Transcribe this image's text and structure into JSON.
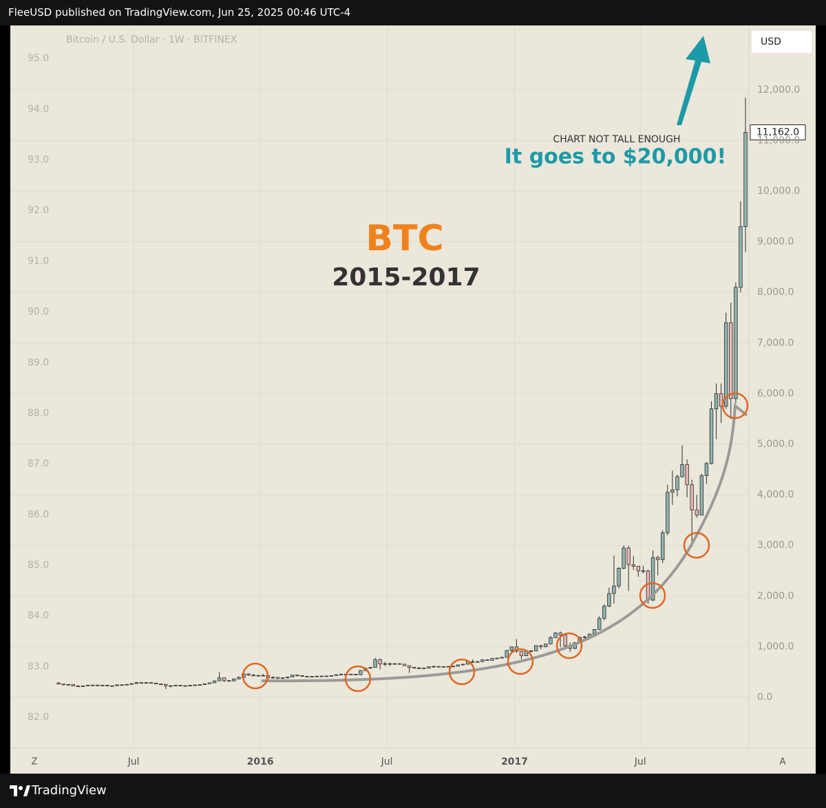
{
  "header": {
    "publisher": "FleeUSD published on TradingView.com, Jun 25, 2025 00:46 UTC-4"
  },
  "footer": {
    "brand": "TradingView"
  },
  "chart_data": {
    "type": "candlestick",
    "symbol": "Bitcoin / U.S. Dollar · 1W · BITFINEX",
    "currency_button": "USD",
    "title": "BTC",
    "subtitle": "2015-2017",
    "annotations": [
      "CHART NOT TALL ENOUGH",
      "It goes to $20,000!"
    ],
    "scale_buttons": [
      "Z",
      "A"
    ],
    "up_color": "#8fb3b0",
    "down_color": "#e6b3b3",
    "wick_color": "#2b2b2b",
    "ohlc": [
      [
        285,
        298,
        256,
        262
      ],
      [
        262,
        268,
        238,
        247
      ],
      [
        247,
        262,
        240,
        254
      ],
      [
        254,
        260,
        219,
        223
      ],
      [
        223,
        237,
        216,
        222
      ],
      [
        222,
        232,
        217,
        226
      ],
      [
        226,
        245,
        223,
        240
      ],
      [
        240,
        247,
        232,
        242
      ],
      [
        242,
        246,
        233,
        237
      ],
      [
        237,
        242,
        233,
        240
      ],
      [
        240,
        242,
        222,
        225
      ],
      [
        225,
        233,
        220,
        229
      ],
      [
        229,
        252,
        228,
        248
      ],
      [
        248,
        251,
        236,
        246
      ],
      [
        246,
        258,
        240,
        256
      ],
      [
        256,
        277,
        254,
        270
      ],
      [
        270,
        305,
        265,
        292
      ],
      [
        292,
        296,
        270,
        276
      ],
      [
        276,
        292,
        273,
        291
      ],
      [
        291,
        298,
        278,
        281
      ],
      [
        281,
        283,
        257,
        263
      ],
      [
        263,
        269,
        256,
        258
      ],
      [
        258,
        263,
        162,
        228
      ],
      [
        228,
        235,
        198,
        230
      ],
      [
        230,
        240,
        225,
        238
      ],
      [
        238,
        245,
        227,
        230
      ],
      [
        230,
        235,
        226,
        230
      ],
      [
        230,
        239,
        227,
        238
      ],
      [
        238,
        247,
        236,
        244
      ],
      [
        244,
        253,
        241,
        250
      ],
      [
        250,
        272,
        248,
        268
      ],
      [
        268,
        290,
        266,
        286
      ],
      [
        286,
        330,
        283,
        325
      ],
      [
        325,
        500,
        320,
        385
      ],
      [
        385,
        390,
        300,
        330
      ],
      [
        330,
        340,
        315,
        324
      ],
      [
        324,
        370,
        318,
        363
      ],
      [
        363,
        418,
        360,
        392
      ],
      [
        392,
        470,
        390,
        462
      ],
      [
        462,
        470,
        422,
        440
      ],
      [
        440,
        458,
        415,
        425
      ],
      [
        425,
        440,
        420,
        433
      ],
      [
        433,
        460,
        425,
        432
      ],
      [
        432,
        438,
        365,
        382
      ],
      [
        382,
        410,
        370,
        395
      ],
      [
        395,
        400,
        363,
        375
      ],
      [
        375,
        395,
        365,
        385
      ],
      [
        385,
        404,
        371,
        400
      ],
      [
        400,
        444,
        398,
        440
      ],
      [
        440,
        445,
        411,
        430
      ],
      [
        430,
        434,
        403,
        413
      ],
      [
        413,
        420,
        405,
        410
      ],
      [
        410,
        422,
        406,
        412
      ],
      [
        412,
        420,
        405,
        418
      ],
      [
        418,
        425,
        412,
        420
      ],
      [
        420,
        425,
        415,
        422
      ],
      [
        422,
        432,
        418,
        430
      ],
      [
        430,
        450,
        428,
        448
      ],
      [
        448,
        470,
        440,
        457
      ],
      [
        457,
        463,
        445,
        458
      ],
      [
        458,
        460,
        448,
        455
      ],
      [
        455,
        458,
        436,
        446
      ],
      [
        446,
        535,
        440,
        528
      ],
      [
        528,
        580,
        515,
        575
      ],
      [
        575,
        600,
        565,
        590
      ],
      [
        590,
        780,
        585,
        745
      ],
      [
        745,
        765,
        550,
        660
      ],
      [
        660,
        700,
        615,
        665
      ],
      [
        665,
        685,
        620,
        655
      ],
      [
        655,
        675,
        645,
        665
      ],
      [
        665,
        670,
        648,
        655
      ],
      [
        655,
        658,
        620,
        625
      ],
      [
        625,
        630,
        480,
        590
      ],
      [
        590,
        600,
        575,
        580
      ],
      [
        580,
        595,
        570,
        580
      ],
      [
        580,
        590,
        572,
        575
      ],
      [
        575,
        610,
        568,
        605
      ],
      [
        605,
        630,
        600,
        610
      ],
      [
        610,
        612,
        600,
        608
      ],
      [
        608,
        610,
        590,
        600
      ],
      [
        600,
        612,
        595,
        610
      ],
      [
        610,
        620,
        605,
        615
      ],
      [
        615,
        645,
        612,
        640
      ],
      [
        640,
        657,
        630,
        653
      ],
      [
        653,
        720,
        650,
        705
      ],
      [
        705,
        750,
        680,
        705
      ],
      [
        705,
        720,
        690,
        705
      ],
      [
        705,
        755,
        700,
        740
      ],
      [
        740,
        745,
        725,
        730
      ],
      [
        730,
        775,
        725,
        770
      ],
      [
        770,
        780,
        755,
        775
      ],
      [
        775,
        800,
        770,
        790
      ],
      [
        790,
        935,
        788,
        925
      ],
      [
        925,
        1000,
        880,
        995
      ],
      [
        995,
        1150,
        880,
        910
      ],
      [
        910,
        915,
        750,
        820
      ],
      [
        820,
        930,
        820,
        920
      ],
      [
        920,
        930,
        885,
        915
      ],
      [
        915,
        1030,
        910,
        1020
      ],
      [
        1020,
        1040,
        950,
        1000
      ],
      [
        1000,
        1060,
        990,
        1055
      ],
      [
        1055,
        1210,
        1050,
        1180
      ],
      [
        1180,
        1290,
        1170,
        1270
      ],
      [
        1270,
        1300,
        990,
        1230
      ],
      [
        1230,
        1260,
        960,
        1020
      ],
      [
        1020,
        1080,
        900,
        965
      ],
      [
        965,
        1090,
        950,
        1080
      ],
      [
        1080,
        1200,
        1070,
        1180
      ],
      [
        1180,
        1210,
        1160,
        1195
      ],
      [
        1195,
        1260,
        1190,
        1250
      ],
      [
        1250,
        1350,
        1240,
        1340
      ],
      [
        1340,
        1600,
        1330,
        1560
      ],
      [
        1560,
        1840,
        1520,
        1800
      ],
      [
        1800,
        2170,
        1780,
        2050
      ],
      [
        2050,
        2800,
        1850,
        2200
      ],
      [
        2200,
        2570,
        2150,
        2550
      ],
      [
        2550,
        3000,
        2530,
        2950
      ],
      [
        2950,
        2990,
        2100,
        2620
      ],
      [
        2620,
        2790,
        2520,
        2590
      ],
      [
        2590,
        2590,
        2380,
        2500
      ],
      [
        2500,
        2600,
        2450,
        2500
      ],
      [
        2500,
        2520,
        1850,
        1920
      ],
      [
        1920,
        2900,
        1900,
        2760
      ],
      [
        2760,
        2800,
        2410,
        2720
      ],
      [
        2720,
        3300,
        2650,
        3250
      ],
      [
        3250,
        4200,
        3200,
        4050
      ],
      [
        4050,
        4480,
        3800,
        4100
      ],
      [
        4100,
        4400,
        3970,
        4360
      ],
      [
        4360,
        4980,
        4340,
        4600
      ],
      [
        4600,
        4700,
        3950,
        4200
      ],
      [
        4200,
        4300,
        2970,
        3700
      ],
      [
        3700,
        4000,
        3550,
        3600
      ],
      [
        3600,
        4420,
        3600,
        4380
      ],
      [
        4380,
        4650,
        4220,
        4620
      ],
      [
        4620,
        5850,
        4600,
        5700
      ],
      [
        5700,
        6200,
        5100,
        6000
      ],
      [
        6000,
        6200,
        5420,
        5750
      ],
      [
        5750,
        7600,
        5700,
        7400
      ],
      [
        7400,
        7800,
        5500,
        5900
      ],
      [
        5900,
        8200,
        5800,
        8100
      ],
      [
        8100,
        9800,
        8000,
        9300
      ],
      [
        9300,
        11850,
        8800,
        11162
      ]
    ],
    "last_price": {
      "value": 11162,
      "label": "11,162.0"
    },
    "xlim": [
      -9.9,
      141.7
    ],
    "xticks": [
      {
        "value": 15.4,
        "label": "Jul"
      },
      {
        "value": 41.4,
        "label": "2016"
      },
      {
        "value": 67.4,
        "label": "Jul"
      },
      {
        "value": 93.6,
        "label": "2017"
      },
      {
        "value": 119.4,
        "label": "Jul"
      }
    ],
    "ylim": [
      -1005,
      13261
    ],
    "yticks": [
      {
        "value": 0,
        "label": "0.0"
      },
      {
        "value": 1000,
        "label": "1,000.0"
      },
      {
        "value": 2000,
        "label": "2,000.0"
      },
      {
        "value": 3000,
        "label": "3,000.0"
      },
      {
        "value": 4000,
        "label": "4,000.0"
      },
      {
        "value": 5000,
        "label": "5,000.0"
      },
      {
        "value": 6000,
        "label": "6,000.0"
      },
      {
        "value": 7000,
        "label": "7,000.0"
      },
      {
        "value": 8000,
        "label": "8,000.0"
      },
      {
        "value": 9000,
        "label": "9,000.0"
      },
      {
        "value": 10000,
        "label": "10,000.0"
      },
      {
        "value": 11000,
        "label": "11,000.0"
      },
      {
        "value": 12000,
        "label": "12,000.0"
      }
    ],
    "y2lim": [
      81.39,
      95.64
    ],
    "y2ticks": [
      {
        "value": 82,
        "label": "82.0"
      },
      {
        "value": 83,
        "label": "83.0"
      },
      {
        "value": 84,
        "label": "84.0"
      },
      {
        "value": 85,
        "label": "85.0"
      },
      {
        "value": 86,
        "label": "86.0"
      },
      {
        "value": 87,
        "label": "87.0"
      },
      {
        "value": 88,
        "label": "88.0"
      },
      {
        "value": 89,
        "label": "89.0"
      },
      {
        "value": 90,
        "label": "90.0"
      },
      {
        "value": 91,
        "label": "91.0"
      },
      {
        "value": 92,
        "label": "92.0"
      },
      {
        "value": 93,
        "label": "93.0"
      },
      {
        "value": 94,
        "label": "94.0"
      },
      {
        "value": 95,
        "label": "95.0"
      }
    ],
    "grid": true
  }
}
